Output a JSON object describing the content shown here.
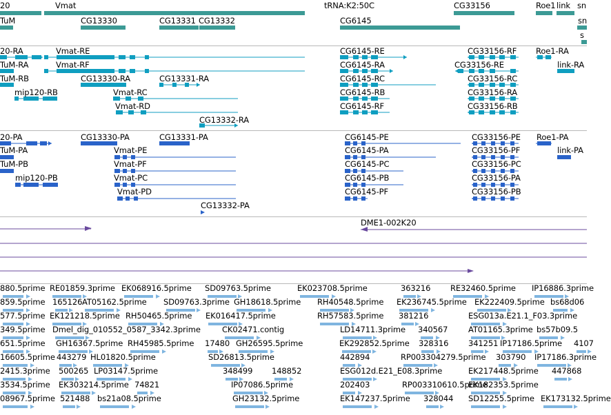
{
  "colors": {
    "gene": "#3c9a95",
    "transcript": "#0f9ec0",
    "protein": "#2a63c9",
    "alignment": "#6a4a9e",
    "est": "#7fb5e0",
    "separator": "#b8b8b8"
  },
  "tracks": {
    "genes": {
      "features": [
        {
          "label": "20"
        },
        {
          "label": "Vmat"
        },
        {
          "label": "tRNA:K2:50C"
        },
        {
          "label": "CG33156"
        },
        {
          "label": "Roe1"
        },
        {
          "label": "link"
        },
        {
          "label": "TuM"
        },
        {
          "label": "CG13330"
        },
        {
          "label": "CG13331"
        },
        {
          "label": "CG13332"
        },
        {
          "label": "CG6145"
        },
        {
          "label": "sn"
        },
        {
          "label": "sn"
        },
        {
          "label": "s"
        }
      ]
    },
    "transcripts": {
      "features": [
        {
          "label": "20-RA"
        },
        {
          "label": "Vmat-RE"
        },
        {
          "label": "CG6145-RE"
        },
        {
          "label": "CG33156-RF"
        },
        {
          "label": "Roe1-RA"
        },
        {
          "label": "TuM-RA"
        },
        {
          "label": "Vmat-RF"
        },
        {
          "label": "CG6145-RA"
        },
        {
          "label": "CG33156-RE"
        },
        {
          "label": "link-RA"
        },
        {
          "label": "TuM-RB"
        },
        {
          "label": "CG13330-RA"
        },
        {
          "label": "CG13331-RA"
        },
        {
          "label": "CG6145-RC"
        },
        {
          "label": "CG33156-RC"
        },
        {
          "label": "mip120-RB"
        },
        {
          "label": "Vmat-RC"
        },
        {
          "label": "CG6145-RB"
        },
        {
          "label": "CG33156-RA"
        },
        {
          "label": "Vmat-RD"
        },
        {
          "label": "CG6145-RF"
        },
        {
          "label": "CG33156-RB"
        },
        {
          "label": "CG13332-RA"
        }
      ]
    },
    "proteins": {
      "features": [
        {
          "label": "20-PA"
        },
        {
          "label": "CG13330-PA"
        },
        {
          "label": "CG13331-PA"
        },
        {
          "label": "CG6145-PE"
        },
        {
          "label": "CG33156-PE"
        },
        {
          "label": "Roe1-PA"
        },
        {
          "label": "TuM-PA"
        },
        {
          "label": "Vmat-PE"
        },
        {
          "label": "CG6145-PA"
        },
        {
          "label": "CG33156-PF"
        },
        {
          "label": "link-PA"
        },
        {
          "label": "TuM-PB"
        },
        {
          "label": "Vmat-PF"
        },
        {
          "label": "CG6145-PC"
        },
        {
          "label": "CG33156-PC"
        },
        {
          "label": "mip120-PB"
        },
        {
          "label": "Vmat-PC"
        },
        {
          "label": "CG6145-PB"
        },
        {
          "label": "CG33156-PA"
        },
        {
          "label": "Vmat-PD"
        },
        {
          "label": "CG6145-PF"
        },
        {
          "label": "CG33156-PB"
        },
        {
          "label": "CG13332-PA"
        }
      ]
    },
    "alignments": {
      "features": [
        {
          "label": "DME1-002K20"
        }
      ]
    },
    "ests": {
      "rows": [
        [
          "880.5prime",
          "RE01859.3prime",
          "EK068916.5prime",
          "SD09763.5prime",
          "EK023708.5prime",
          "363216",
          "RE32460.5prime",
          "IP16886.3prime"
        ],
        [
          "859.5prime",
          "165126",
          "AT05162.5prime",
          "SD09763.3prime",
          "GH18618.5prime",
          "RH40548.5prime",
          "EK236745.5prime",
          "EK222409.5prime",
          "bs68d06"
        ],
        [
          "577.5prime",
          "EK121218.5prime",
          "RH50465.5prime",
          "EK016417.5prime",
          "RH57583.5prime",
          "381216",
          "ESG013a.E21.1_F03.3prime"
        ],
        [
          "349.5prime",
          "Dmel_dig_010552_0587_3342.3prime",
          "CK02471.contig",
          "LD14711.3prime",
          "340567",
          "AT01165.3prime",
          "bs57b09.5"
        ],
        [
          "651.5prime",
          "GH16367.5prime",
          "RH45985.5prime",
          "17480",
          "GH26595.5prime",
          "EK292852.5prime",
          "328316",
          "341251",
          "IP17186.5prime",
          "4107"
        ],
        [
          "16605.5prime",
          "443279",
          "HL01820.5prime",
          "SD26813.5prime",
          "442894",
          "RP003304279.5prime",
          "303790",
          "IP17186.3prime"
        ],
        [
          "2415.3prime",
          "500265",
          "LP03147.5prime",
          "348499",
          "148852",
          "ESG012d.E21_E08.3prime",
          "EK217448.5prime",
          "447868"
        ],
        [
          "3534.5prime",
          "EK303214.5prime",
          "74821",
          "IP07086.5prime",
          "202403",
          "RP003310610.5prime",
          "EK182353.5prime"
        ],
        [
          "08967.5prime",
          "521488",
          "bs21a08.5prime",
          "GH23132.5prime",
          "EK147237.5prime",
          "328044",
          "SD12255.5prime",
          "EK173132.5prime"
        ]
      ]
    }
  }
}
